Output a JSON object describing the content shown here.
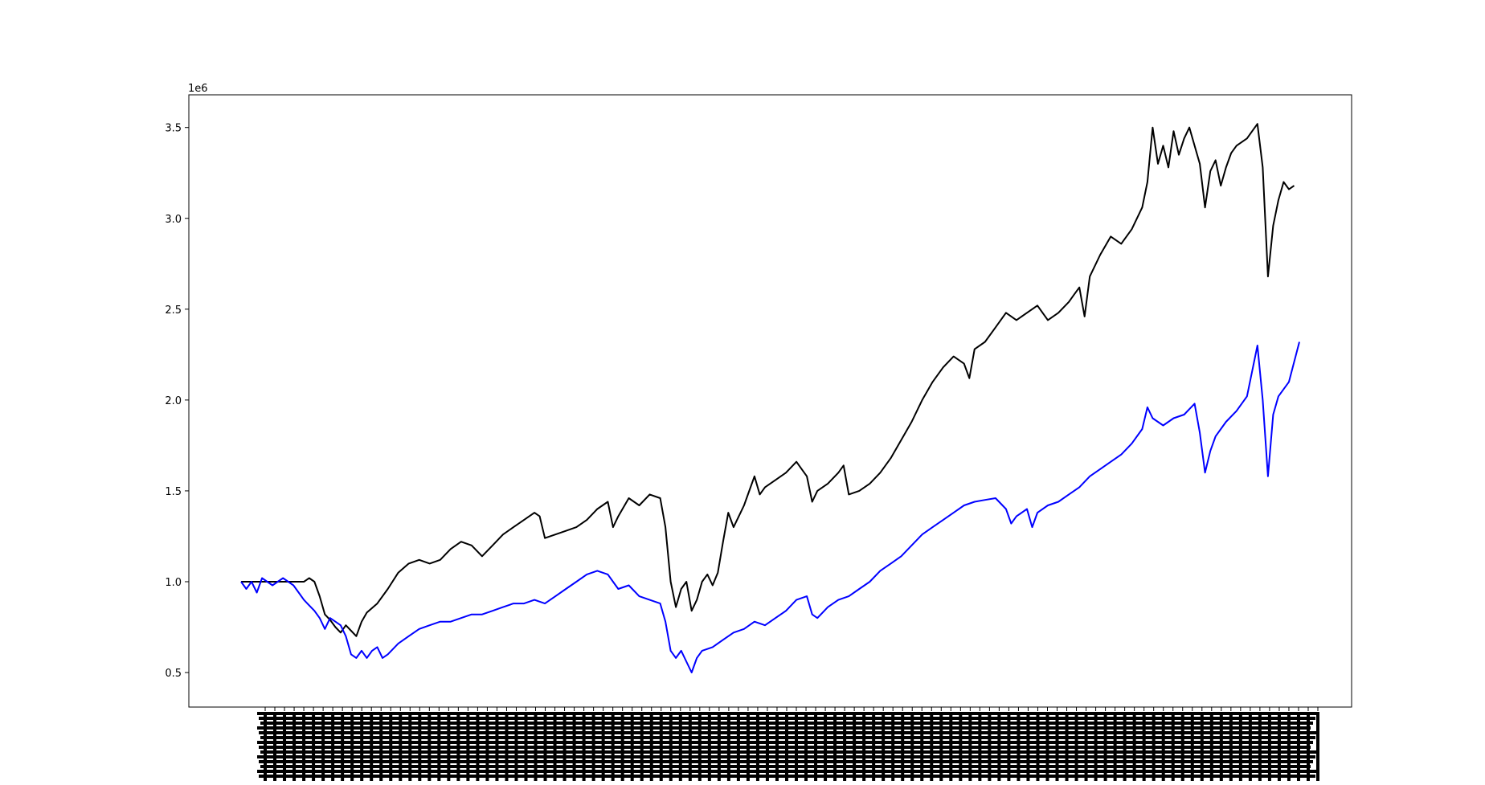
{
  "chart_data": {
    "type": "line",
    "title": "",
    "xlabel": "",
    "ylabel": "",
    "y_offset_label": "1e6",
    "ylim": [
      0.31,
      3.68
    ],
    "yticks": [
      {
        "value": 0.5,
        "label": "0.5"
      },
      {
        "value": 1.0,
        "label": "1.0"
      },
      {
        "value": 1.5,
        "label": "1.5"
      },
      {
        "value": 2.0,
        "label": "2.0"
      },
      {
        "value": 2.5,
        "label": "2.5"
      },
      {
        "value": 3.0,
        "label": "3.0"
      },
      {
        "value": 3.5,
        "label": "3.5"
      }
    ],
    "x_tick_labels": "dense overlapping rotated date labels (illegible)",
    "x_tick_count": 110,
    "grid": false,
    "legend": "none",
    "series": [
      {
        "color": "#000000",
        "points": [
          [
            0,
            1.0
          ],
          [
            2,
            1.0
          ],
          [
            4,
            1.0
          ],
          [
            6,
            1.0
          ],
          [
            8,
            1.0
          ],
          [
            10,
            1.0
          ],
          [
            12,
            1.0
          ],
          [
            13,
            1.02
          ],
          [
            14,
            1.0
          ],
          [
            15,
            0.92
          ],
          [
            16,
            0.82
          ],
          [
            17,
            0.79
          ],
          [
            18,
            0.75
          ],
          [
            19,
            0.72
          ],
          [
            20,
            0.76
          ],
          [
            21,
            0.73
          ],
          [
            22,
            0.7
          ],
          [
            23,
            0.78
          ],
          [
            24,
            0.83
          ],
          [
            26,
            0.88
          ],
          [
            28,
            0.96
          ],
          [
            30,
            1.05
          ],
          [
            32,
            1.1
          ],
          [
            34,
            1.12
          ],
          [
            36,
            1.1
          ],
          [
            38,
            1.12
          ],
          [
            40,
            1.18
          ],
          [
            42,
            1.22
          ],
          [
            44,
            1.2
          ],
          [
            46,
            1.14
          ],
          [
            48,
            1.2
          ],
          [
            50,
            1.26
          ],
          [
            52,
            1.3
          ],
          [
            54,
            1.34
          ],
          [
            56,
            1.38
          ],
          [
            57,
            1.36
          ],
          [
            58,
            1.24
          ],
          [
            60,
            1.26
          ],
          [
            62,
            1.28
          ],
          [
            64,
            1.3
          ],
          [
            66,
            1.34
          ],
          [
            68,
            1.4
          ],
          [
            70,
            1.44
          ],
          [
            71,
            1.3
          ],
          [
            72,
            1.36
          ],
          [
            74,
            1.46
          ],
          [
            76,
            1.42
          ],
          [
            78,
            1.48
          ],
          [
            80,
            1.46
          ],
          [
            81,
            1.3
          ],
          [
            82,
            1.0
          ],
          [
            83,
            0.86
          ],
          [
            84,
            0.96
          ],
          [
            85,
            1.0
          ],
          [
            86,
            0.84
          ],
          [
            87,
            0.9
          ],
          [
            88,
            1.0
          ],
          [
            89,
            1.04
          ],
          [
            90,
            0.98
          ],
          [
            91,
            1.05
          ],
          [
            92,
            1.22
          ],
          [
            93,
            1.38
          ],
          [
            94,
            1.3
          ],
          [
            95,
            1.36
          ],
          [
            96,
            1.42
          ],
          [
            97,
            1.5
          ],
          [
            98,
            1.58
          ],
          [
            99,
            1.48
          ],
          [
            100,
            1.52
          ],
          [
            102,
            1.56
          ],
          [
            104,
            1.6
          ],
          [
            106,
            1.66
          ],
          [
            107,
            1.62
          ],
          [
            108,
            1.58
          ],
          [
            109,
            1.44
          ],
          [
            110,
            1.5
          ],
          [
            112,
            1.54
          ],
          [
            114,
            1.6
          ],
          [
            115,
            1.64
          ],
          [
            116,
            1.48
          ],
          [
            118,
            1.5
          ],
          [
            120,
            1.54
          ],
          [
            122,
            1.6
          ],
          [
            124,
            1.68
          ],
          [
            126,
            1.78
          ],
          [
            128,
            1.88
          ],
          [
            130,
            2.0
          ],
          [
            132,
            2.1
          ],
          [
            134,
            2.18
          ],
          [
            136,
            2.24
          ],
          [
            138,
            2.2
          ],
          [
            139,
            2.12
          ],
          [
            140,
            2.28
          ],
          [
            142,
            2.32
          ],
          [
            144,
            2.4
          ],
          [
            146,
            2.48
          ],
          [
            148,
            2.44
          ],
          [
            150,
            2.48
          ],
          [
            152,
            2.52
          ],
          [
            154,
            2.44
          ],
          [
            156,
            2.48
          ],
          [
            158,
            2.54
          ],
          [
            159,
            2.58
          ],
          [
            160,
            2.62
          ],
          [
            161,
            2.46
          ],
          [
            162,
            2.68
          ],
          [
            164,
            2.8
          ],
          [
            166,
            2.9
          ],
          [
            168,
            2.86
          ],
          [
            170,
            2.94
          ],
          [
            172,
            3.06
          ],
          [
            173,
            3.2
          ],
          [
            174,
            3.5
          ],
          [
            175,
            3.3
          ],
          [
            176,
            3.4
          ],
          [
            177,
            3.28
          ],
          [
            178,
            3.48
          ],
          [
            179,
            3.35
          ],
          [
            180,
            3.44
          ],
          [
            181,
            3.5
          ],
          [
            182,
            3.4
          ],
          [
            183,
            3.3
          ],
          [
            184,
            3.06
          ],
          [
            185,
            3.26
          ],
          [
            186,
            3.32
          ],
          [
            187,
            3.18
          ],
          [
            188,
            3.28
          ],
          [
            189,
            3.36
          ],
          [
            190,
            3.4
          ],
          [
            192,
            3.44
          ],
          [
            193,
            3.48
          ],
          [
            194,
            3.52
          ],
          [
            195,
            3.28
          ],
          [
            196,
            2.68
          ],
          [
            197,
            2.96
          ],
          [
            198,
            3.1
          ],
          [
            199,
            3.2
          ],
          [
            200,
            3.16
          ],
          [
            201,
            3.18
          ]
        ]
      },
      {
        "color": "#0000ff",
        "points": [
          [
            0,
            1.0
          ],
          [
            1,
            0.96
          ],
          [
            2,
            1.0
          ],
          [
            3,
            0.94
          ],
          [
            4,
            1.02
          ],
          [
            5,
            1.0
          ],
          [
            6,
            0.98
          ],
          [
            7,
            1.0
          ],
          [
            8,
            1.02
          ],
          [
            9,
            1.0
          ],
          [
            10,
            0.98
          ],
          [
            11,
            0.94
          ],
          [
            12,
            0.9
          ],
          [
            14,
            0.84
          ],
          [
            15,
            0.8
          ],
          [
            16,
            0.74
          ],
          [
            17,
            0.8
          ],
          [
            18,
            0.78
          ],
          [
            19,
            0.76
          ],
          [
            20,
            0.7
          ],
          [
            21,
            0.6
          ],
          [
            22,
            0.58
          ],
          [
            23,
            0.62
          ],
          [
            24,
            0.58
          ],
          [
            25,
            0.62
          ],
          [
            26,
            0.64
          ],
          [
            27,
            0.58
          ],
          [
            28,
            0.6
          ],
          [
            30,
            0.66
          ],
          [
            32,
            0.7
          ],
          [
            34,
            0.74
          ],
          [
            36,
            0.76
          ],
          [
            38,
            0.78
          ],
          [
            40,
            0.78
          ],
          [
            42,
            0.8
          ],
          [
            44,
            0.82
          ],
          [
            46,
            0.82
          ],
          [
            48,
            0.84
          ],
          [
            50,
            0.86
          ],
          [
            52,
            0.88
          ],
          [
            54,
            0.88
          ],
          [
            56,
            0.9
          ],
          [
            58,
            0.88
          ],
          [
            60,
            0.92
          ],
          [
            62,
            0.96
          ],
          [
            64,
            1.0
          ],
          [
            66,
            1.04
          ],
          [
            68,
            1.06
          ],
          [
            70,
            1.04
          ],
          [
            71,
            1.0
          ],
          [
            72,
            0.96
          ],
          [
            74,
            0.98
          ],
          [
            76,
            0.92
          ],
          [
            78,
            0.9
          ],
          [
            80,
            0.88
          ],
          [
            81,
            0.78
          ],
          [
            82,
            0.62
          ],
          [
            83,
            0.58
          ],
          [
            84,
            0.62
          ],
          [
            85,
            0.56
          ],
          [
            86,
            0.5
          ],
          [
            87,
            0.58
          ],
          [
            88,
            0.62
          ],
          [
            90,
            0.64
          ],
          [
            92,
            0.68
          ],
          [
            94,
            0.72
          ],
          [
            96,
            0.74
          ],
          [
            98,
            0.78
          ],
          [
            100,
            0.76
          ],
          [
            102,
            0.8
          ],
          [
            104,
            0.84
          ],
          [
            106,
            0.9
          ],
          [
            108,
            0.92
          ],
          [
            109,
            0.82
          ],
          [
            110,
            0.8
          ],
          [
            112,
            0.86
          ],
          [
            114,
            0.9
          ],
          [
            116,
            0.92
          ],
          [
            118,
            0.96
          ],
          [
            120,
            1.0
          ],
          [
            122,
            1.06
          ],
          [
            124,
            1.1
          ],
          [
            126,
            1.14
          ],
          [
            128,
            1.2
          ],
          [
            130,
            1.26
          ],
          [
            132,
            1.3
          ],
          [
            134,
            1.34
          ],
          [
            136,
            1.38
          ],
          [
            138,
            1.42
          ],
          [
            140,
            1.44
          ],
          [
            142,
            1.45
          ],
          [
            144,
            1.46
          ],
          [
            146,
            1.4
          ],
          [
            147,
            1.32
          ],
          [
            148,
            1.36
          ],
          [
            150,
            1.4
          ],
          [
            151,
            1.3
          ],
          [
            152,
            1.38
          ],
          [
            154,
            1.42
          ],
          [
            156,
            1.44
          ],
          [
            158,
            1.48
          ],
          [
            160,
            1.52
          ],
          [
            162,
            1.58
          ],
          [
            164,
            1.62
          ],
          [
            166,
            1.66
          ],
          [
            168,
            1.7
          ],
          [
            170,
            1.76
          ],
          [
            172,
            1.84
          ],
          [
            173,
            1.96
          ],
          [
            174,
            1.9
          ],
          [
            176,
            1.86
          ],
          [
            178,
            1.9
          ],
          [
            180,
            1.92
          ],
          [
            182,
            1.98
          ],
          [
            183,
            1.82
          ],
          [
            184,
            1.6
          ],
          [
            185,
            1.72
          ],
          [
            186,
            1.8
          ],
          [
            188,
            1.88
          ],
          [
            190,
            1.94
          ],
          [
            192,
            2.02
          ],
          [
            193,
            2.16
          ],
          [
            194,
            2.3
          ],
          [
            195,
            2.0
          ],
          [
            196,
            1.58
          ],
          [
            197,
            1.92
          ],
          [
            198,
            2.02
          ],
          [
            200,
            2.1
          ],
          [
            202,
            2.32
          ]
        ]
      }
    ]
  }
}
